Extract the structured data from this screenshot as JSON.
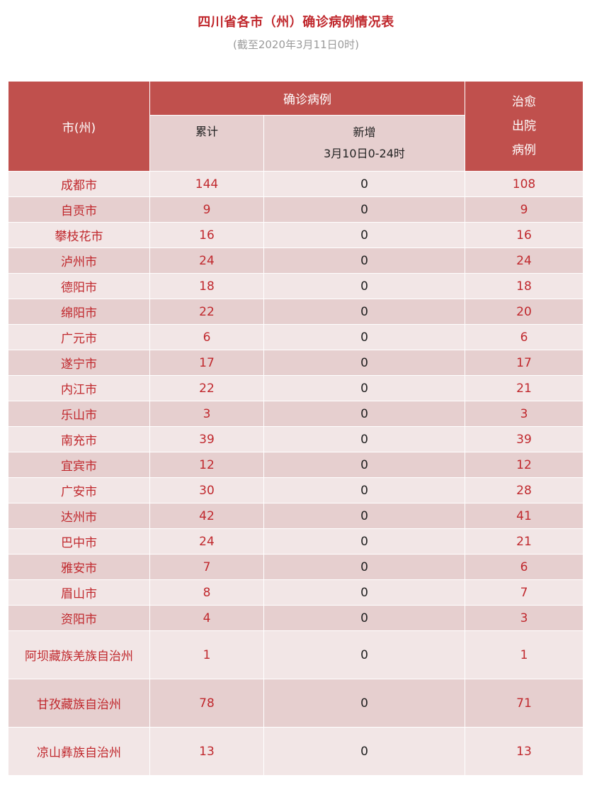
{
  "title": "四川省各市（州）确诊病例情况表",
  "subtitle": "(截至2020年3月11日0时)",
  "table": {
    "headers": {
      "city": "市(州)",
      "confirmed": "确诊病例",
      "cumulative": "累计",
      "new_line1": "新增",
      "new_line2": "3月10日0-24时",
      "recovered_line1": "治愈",
      "recovered_line2": "出院",
      "recovered_line3": "病例"
    },
    "rows": [
      {
        "city": "成都市",
        "cumulative": "144",
        "new": "0",
        "recovered": "108"
      },
      {
        "city": "自贡市",
        "cumulative": "9",
        "new": "0",
        "recovered": "9"
      },
      {
        "city": "攀枝花市",
        "cumulative": "16",
        "new": "0",
        "recovered": "16"
      },
      {
        "city": "泸州市",
        "cumulative": "24",
        "new": "0",
        "recovered": "24"
      },
      {
        "city": "德阳市",
        "cumulative": "18",
        "new": "0",
        "recovered": "18"
      },
      {
        "city": "绵阳市",
        "cumulative": "22",
        "new": "0",
        "recovered": "20"
      },
      {
        "city": "广元市",
        "cumulative": "6",
        "new": "0",
        "recovered": "6"
      },
      {
        "city": "遂宁市",
        "cumulative": "17",
        "new": "0",
        "recovered": "17"
      },
      {
        "city": "内江市",
        "cumulative": "22",
        "new": "0",
        "recovered": "21"
      },
      {
        "city": "乐山市",
        "cumulative": "3",
        "new": "0",
        "recovered": "3"
      },
      {
        "city": "南充市",
        "cumulative": "39",
        "new": "0",
        "recovered": "39"
      },
      {
        "city": "宜宾市",
        "cumulative": "12",
        "new": "0",
        "recovered": "12"
      },
      {
        "city": "广安市",
        "cumulative": "30",
        "new": "0",
        "recovered": "28"
      },
      {
        "city": "达州市",
        "cumulative": "42",
        "new": "0",
        "recovered": "41"
      },
      {
        "city": "巴中市",
        "cumulative": "24",
        "new": "0",
        "recovered": "21"
      },
      {
        "city": "雅安市",
        "cumulative": "7",
        "new": "0",
        "recovered": "6"
      },
      {
        "city": "眉山市",
        "cumulative": "8",
        "new": "0",
        "recovered": "7"
      },
      {
        "city": "资阳市",
        "cumulative": "4",
        "new": "0",
        "recovered": "3"
      },
      {
        "city": "阿坝藏族羌族自治州",
        "cumulative": "1",
        "new": "0",
        "recovered": "1"
      },
      {
        "city": "甘孜藏族自治州",
        "cumulative": "78",
        "new": "0",
        "recovered": "71"
      },
      {
        "city": "凉山彝族自治州",
        "cumulative": "13",
        "new": "0",
        "recovered": "13"
      }
    ]
  }
}
